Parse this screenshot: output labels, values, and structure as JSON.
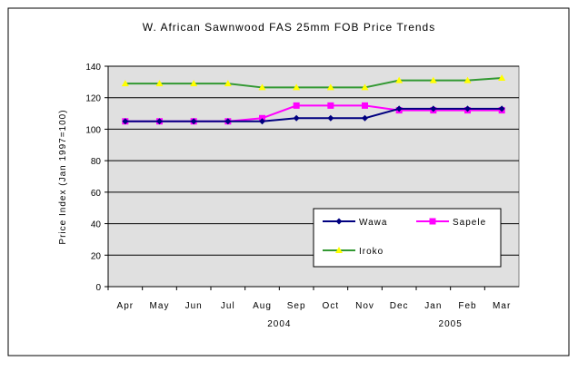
{
  "chart_data": {
    "type": "line",
    "title": "W. African Sawnwood FAS 25mm FOB Price Trends",
    "xlabel": "",
    "ylabel": "Price Index (Jan 1997=100)",
    "ylim": [
      0,
      140
    ],
    "yticks": [
      0,
      20,
      40,
      60,
      80,
      100,
      120,
      140
    ],
    "grid": true,
    "legend_position": "bottom-right",
    "categories": [
      "Apr",
      "May",
      "Jun",
      "Jul",
      "Aug",
      "Sep",
      "Oct",
      "Nov",
      "Dec",
      "Jan",
      "Feb",
      "Mar"
    ],
    "year_labels": [
      {
        "label": "2004",
        "center_index": 4.5
      },
      {
        "label": "2005",
        "center_index": 9.5
      }
    ],
    "series": [
      {
        "name": "Wawa",
        "color": "#000080",
        "marker": "diamond",
        "values": [
          105,
          105,
          105,
          105,
          105,
          107,
          107,
          107,
          113,
          113,
          113,
          113
        ]
      },
      {
        "name": "Sapele",
        "color": "#FF00FF",
        "marker": "square",
        "values": [
          105,
          105,
          105,
          105,
          107,
          115,
          115,
          115,
          112,
          112,
          112,
          112
        ]
      },
      {
        "name": "Iroko",
        "color": "#339933",
        "marker": "triangle",
        "marker_color": "#FFFF00",
        "values": [
          129,
          129,
          129,
          129,
          126.5,
          126.5,
          126.5,
          126.5,
          131,
          131,
          131,
          132.5
        ]
      }
    ]
  }
}
